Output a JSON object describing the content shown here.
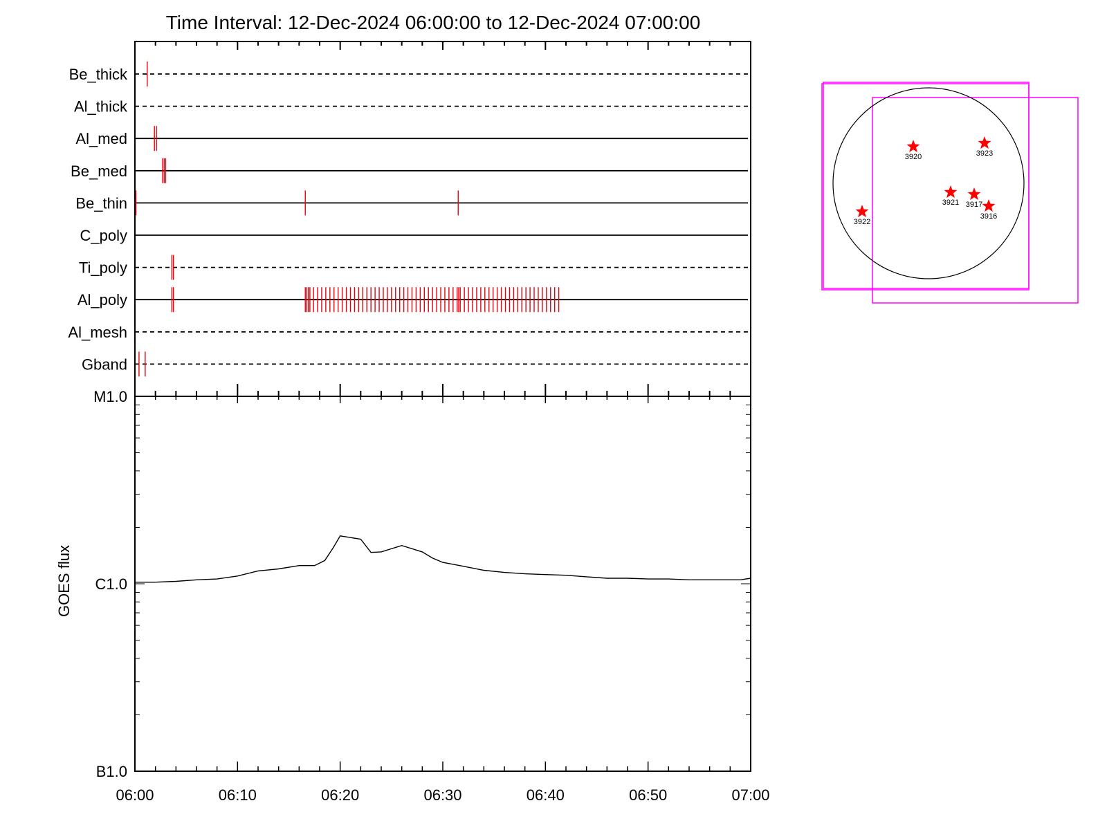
{
  "chart_data": [
    {
      "type": "timeline",
      "title": "Time Interval: 12-Dec-2024 06:00:00 to 12-Dec-2024 07:00:00",
      "x_unit": "minutes after 06:00",
      "xlim": [
        0,
        60
      ],
      "mark_color": "#e8000b",
      "filters": [
        {
          "name": "Be_thick",
          "line": "dashed",
          "events": [
            1.2
          ]
        },
        {
          "name": "Al_thick",
          "line": "dashed",
          "events": []
        },
        {
          "name": "Al_med",
          "line": "solid",
          "events": [
            1.9,
            2.1
          ]
        },
        {
          "name": "Be_med",
          "line": "solid",
          "events": [
            2.7,
            2.85,
            3.0
          ]
        },
        {
          "name": "Be_thin",
          "line": "solid",
          "events": [
            0.1,
            16.6,
            31.5
          ]
        },
        {
          "name": "C_poly",
          "line": "solid",
          "events": []
        },
        {
          "name": "Ti_poly",
          "line": "dashed",
          "events": [
            3.6,
            3.75
          ]
        },
        {
          "name": "Al_poly",
          "line": "solid",
          "events": [
            3.6,
            3.75,
            16.6,
            16.75,
            16.9,
            17.05,
            17.4,
            17.8,
            18.2,
            18.6,
            19.0,
            19.4,
            19.8,
            20.2,
            20.6,
            21.0,
            21.4,
            21.8,
            22.2,
            22.6,
            23.0,
            23.4,
            23.8,
            24.2,
            24.6,
            25.0,
            25.4,
            25.8,
            26.2,
            26.6,
            27.0,
            27.4,
            27.8,
            28.2,
            28.6,
            29.0,
            29.4,
            29.8,
            30.2,
            30.6,
            31.0,
            31.4,
            31.55,
            31.7,
            32.1,
            32.5,
            32.9,
            33.3,
            33.7,
            34.1,
            34.5,
            34.9,
            35.3,
            35.7,
            36.1,
            36.5,
            36.9,
            37.3,
            37.7,
            38.1,
            38.5,
            38.9,
            39.3,
            39.7,
            40.1,
            40.5,
            40.9,
            41.3
          ]
        },
        {
          "name": "Al_mesh",
          "line": "dashed",
          "events": []
        },
        {
          "name": "Gband",
          "line": "dashed",
          "events": [
            0.4,
            1.0
          ]
        }
      ]
    },
    {
      "type": "line",
      "ylabel": "GOES flux",
      "y_scale": "log",
      "ylim": [
        1e-07,
        1e-05
      ],
      "y_ticks": [
        {
          "value": 1e-05,
          "label": "M1.0"
        },
        {
          "value": 1e-06,
          "label": "C1.0"
        },
        {
          "value": 1e-07,
          "label": "B1.0"
        }
      ],
      "x_ticks": [
        {
          "value": 0,
          "label": "06:00"
        },
        {
          "value": 10,
          "label": "06:10"
        },
        {
          "value": 20,
          "label": "06:20"
        },
        {
          "value": 30,
          "label": "06:30"
        },
        {
          "value": 40,
          "label": "06:40"
        },
        {
          "value": 50,
          "label": "06:50"
        },
        {
          "value": 60,
          "label": "07:00"
        }
      ],
      "xlim": [
        0,
        60
      ],
      "series": [
        {
          "x": [
            0,
            2,
            4,
            6,
            8,
            10,
            12,
            14,
            16,
            17.5,
            18.5,
            19.3,
            20,
            22,
            23,
            24,
            26,
            28,
            29,
            30,
            32,
            34,
            36,
            38,
            40,
            42,
            44,
            46,
            48,
            50,
            52,
            54,
            56,
            58,
            59,
            60
          ],
          "y": [
            1.02e-06,
            1.02e-06,
            1.03e-06,
            1.05e-06,
            1.06e-06,
            1.1e-06,
            1.17e-06,
            1.2e-06,
            1.25e-06,
            1.25e-06,
            1.33e-06,
            1.55e-06,
            1.8e-06,
            1.73e-06,
            1.47e-06,
            1.48e-06,
            1.6e-06,
            1.48e-06,
            1.37e-06,
            1.3e-06,
            1.24e-06,
            1.18e-06,
            1.15e-06,
            1.13e-06,
            1.12e-06,
            1.11e-06,
            1.09e-06,
            1.07e-06,
            1.07e-06,
            1.06e-06,
            1.06e-06,
            1.05e-06,
            1.05e-06,
            1.05e-06,
            1.05e-06,
            1.07e-06
          ]
        }
      ]
    },
    {
      "type": "scatter",
      "disk_color": "#000000",
      "box_color": "#ff00ff",
      "star_color": "#ff0000",
      "regions": [
        {
          "label": "3920"
        },
        {
          "label": "3923"
        },
        {
          "label": "3921"
        },
        {
          "label": "3917"
        },
        {
          "label": "3916"
        },
        {
          "label": "3922"
        }
      ]
    }
  ]
}
